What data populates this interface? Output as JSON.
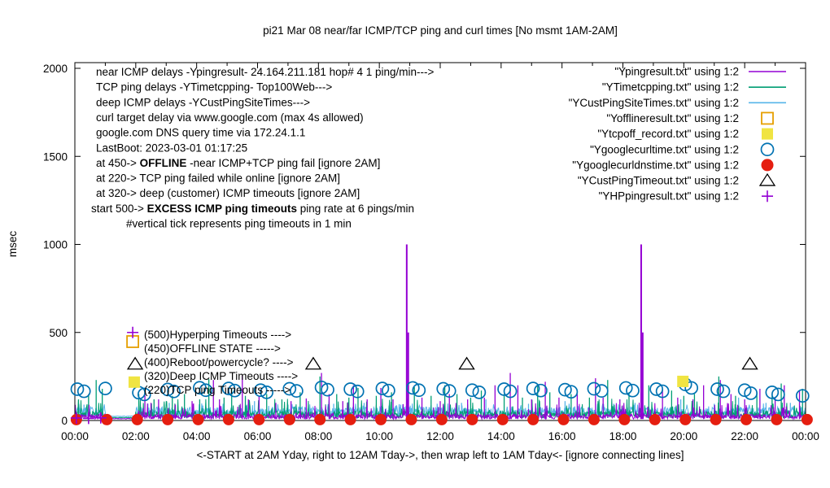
{
  "chart_data": {
    "type": "line",
    "title": "pi21 Mar 08  near/far ICMP/TCP ping and curl times [No msmt 1AM-2AM]",
    "xlabel": "<-START at 2AM Yday, right to 12AM Tday->, then wrap left to 1AM Tday<- [ignore connecting lines]",
    "ylabel": "msec",
    "xlim": [
      0,
      24
    ],
    "ylim": [
      0,
      2000
    ],
    "grid": false,
    "legend_position": "top-right",
    "x_ticks": [
      "00:00",
      "02:00",
      "04:00",
      "06:00",
      "08:00",
      "10:00",
      "12:00",
      "14:00",
      "16:00",
      "18:00",
      "20:00",
      "22:00",
      "00:00"
    ],
    "y_ticks": [
      0,
      500,
      1000,
      1500,
      2000
    ],
    "minor_x_tick_every_hours": 1,
    "no_measurement_gap_hours": [
      1,
      2
    ],
    "noise_seed": 20230308,
    "colors": {
      "purple": "#9400d3",
      "teal": "#009e73",
      "skyblue": "#56b4e9",
      "orange": "#e69f00",
      "yellow": "#f0e442",
      "blue": "#0072b2",
      "red": "#e51e10",
      "black": "#000000"
    },
    "series": [
      {
        "name": "YCustPingSiteTimes.txt",
        "color": "skyblue",
        "style": "impulse-noise",
        "noise": {
          "base": 22,
          "jitter": 55,
          "p": 0.16,
          "amp": 75
        },
        "spikes": [
          [
            0.3,
            90
          ],
          [
            2.4,
            95
          ],
          [
            3.1,
            100
          ],
          [
            4.2,
            85
          ],
          [
            5.9,
            110
          ],
          [
            7.0,
            90
          ],
          [
            8.5,
            95
          ],
          [
            9.5,
            100
          ],
          [
            10.7,
            90
          ],
          [
            11.9,
            95
          ],
          [
            12.7,
            100
          ],
          [
            13.5,
            120
          ],
          [
            14.9,
            95
          ],
          [
            16.1,
            110
          ],
          [
            17.7,
            95
          ],
          [
            18.4,
            100
          ],
          [
            19.9,
            120
          ],
          [
            21.0,
            95
          ],
          [
            21.8,
            130
          ],
          [
            22.7,
            100
          ],
          [
            23.5,
            100
          ]
        ]
      },
      {
        "name": "YTimetcpping.txt",
        "color": "teal",
        "style": "impulse-noise",
        "noise": {
          "base": 14,
          "jitter": 40,
          "p": 0.12,
          "amp": 110
        },
        "spikes": [
          [
            0.12,
            120
          ],
          [
            0.45,
            150
          ],
          [
            0.7,
            230
          ],
          [
            0.9,
            180
          ],
          [
            2.1,
            150
          ],
          [
            2.6,
            120
          ],
          [
            3.2,
            140
          ],
          [
            3.6,
            150
          ],
          [
            4.1,
            120
          ],
          [
            4.4,
            235
          ],
          [
            4.9,
            130
          ],
          [
            5.15,
            180
          ],
          [
            5.6,
            140
          ],
          [
            6.3,
            150
          ],
          [
            6.8,
            120
          ],
          [
            7.4,
            160
          ],
          [
            8.05,
            250
          ],
          [
            8.6,
            150
          ],
          [
            9.0,
            130
          ],
          [
            9.3,
            185
          ],
          [
            9.9,
            140
          ],
          [
            10.4,
            160
          ],
          [
            11.15,
            190
          ],
          [
            11.7,
            140
          ],
          [
            12.15,
            200
          ],
          [
            12.55,
            150
          ],
          [
            13.0,
            130
          ],
          [
            13.35,
            170
          ],
          [
            14.1,
            150
          ],
          [
            14.7,
            130
          ],
          [
            15.2,
            200
          ],
          [
            15.6,
            160
          ],
          [
            16.3,
            150
          ],
          [
            16.9,
            130
          ],
          [
            17.5,
            230
          ],
          [
            18.2,
            160
          ],
          [
            18.85,
            200
          ],
          [
            19.6,
            170
          ],
          [
            20.0,
            140
          ],
          [
            20.35,
            150
          ],
          [
            21.15,
            250
          ],
          [
            21.7,
            140
          ],
          [
            22.4,
            160
          ],
          [
            22.9,
            140
          ],
          [
            23.2,
            210
          ],
          [
            23.9,
            180
          ]
        ]
      },
      {
        "name": "Ypingresult.txt",
        "color": "purple",
        "style": "impulse-noise",
        "noise": {
          "base": 8,
          "jitter": 28,
          "p": 0.09,
          "amp": 95
        },
        "spikes": [
          [
            2.3,
            160
          ],
          [
            2.5,
            100
          ],
          [
            2.75,
            120
          ],
          [
            3.3,
            90
          ],
          [
            3.85,
            110
          ],
          [
            4.55,
            230
          ],
          [
            4.75,
            120
          ],
          [
            5.5,
            255
          ],
          [
            5.7,
            120
          ],
          [
            6.05,
            140
          ],
          [
            6.6,
            100
          ],
          [
            7.1,
            110
          ],
          [
            7.6,
            125
          ],
          [
            8.1,
            270
          ],
          [
            8.35,
            150
          ],
          [
            8.8,
            110
          ],
          [
            9.15,
            200
          ],
          [
            9.6,
            120
          ],
          [
            10.05,
            185
          ],
          [
            10.45,
            120
          ],
          [
            10.9,
            1000
          ],
          [
            10.95,
            500
          ],
          [
            11.4,
            130
          ],
          [
            12.0,
            110
          ],
          [
            12.3,
            150
          ],
          [
            12.9,
            120
          ],
          [
            13.45,
            130
          ],
          [
            13.8,
            200
          ],
          [
            14.3,
            270
          ],
          [
            14.55,
            200
          ],
          [
            15.0,
            120
          ],
          [
            15.45,
            220
          ],
          [
            15.9,
            130
          ],
          [
            16.5,
            150
          ],
          [
            17.1,
            240
          ],
          [
            17.35,
            130
          ],
          [
            17.9,
            120
          ],
          [
            18.6,
            1000
          ],
          [
            18.65,
            500
          ],
          [
            19.3,
            180
          ],
          [
            19.8,
            130
          ],
          [
            20.3,
            120
          ],
          [
            20.65,
            200
          ],
          [
            21.2,
            230
          ],
          [
            21.55,
            150
          ],
          [
            22.0,
            120
          ],
          [
            22.5,
            180
          ],
          [
            23.0,
            130
          ],
          [
            23.3,
            200
          ],
          [
            23.8,
            170
          ]
        ]
      }
    ],
    "markers": {
      "dns_time_red_dots": {
        "series": "Ygooglecurldnstime.txt",
        "value": 5,
        "hours": [
          0,
          1,
          2,
          3,
          4,
          5,
          6,
          7,
          8,
          9,
          10,
          11,
          12,
          13,
          14,
          15,
          16,
          17,
          18,
          19,
          20,
          21,
          22,
          23,
          24
        ]
      },
      "curl_time_circles": {
        "series": "Ygooglecurltime.txt",
        "points": [
          [
            0.08,
            178
          ],
          [
            0.3,
            166
          ],
          [
            1.0,
            182
          ],
          [
            2.1,
            158
          ],
          [
            2.28,
            148
          ],
          [
            3.05,
            176
          ],
          [
            3.25,
            165
          ],
          [
            4.1,
            186
          ],
          [
            4.3,
            172
          ],
          [
            5.05,
            182
          ],
          [
            5.25,
            170
          ],
          [
            6.1,
            172
          ],
          [
            6.3,
            160
          ],
          [
            7.05,
            180
          ],
          [
            7.28,
            168
          ],
          [
            8.1,
            188
          ],
          [
            8.3,
            175
          ],
          [
            9.05,
            178
          ],
          [
            9.28,
            165
          ],
          [
            10.1,
            182
          ],
          [
            10.3,
            170
          ],
          [
            11.1,
            185
          ],
          [
            11.3,
            172
          ],
          [
            12.1,
            180
          ],
          [
            12.3,
            168
          ],
          [
            13.05,
            172
          ],
          [
            13.28,
            160
          ],
          [
            14.1,
            178
          ],
          [
            14.3,
            166
          ],
          [
            15.05,
            182
          ],
          [
            15.3,
            170
          ],
          [
            16.1,
            175
          ],
          [
            16.3,
            163
          ],
          [
            17.05,
            180
          ],
          [
            17.3,
            168
          ],
          [
            18.1,
            185
          ],
          [
            18.32,
            170
          ],
          [
            19.1,
            178
          ],
          [
            19.3,
            166
          ],
          [
            20.05,
            205
          ],
          [
            20.25,
            185
          ],
          [
            21.1,
            178
          ],
          [
            21.3,
            166
          ],
          [
            22.0,
            172
          ],
          [
            22.2,
            155
          ],
          [
            22.9,
            160
          ],
          [
            23.1,
            148
          ],
          [
            23.9,
            140
          ]
        ]
      },
      "deep_icmp_timeout_triangles": {
        "series": "YCustPingTimeout.txt",
        "points": [
          [
            1.98,
            320
          ],
          [
            7.83,
            320
          ],
          [
            12.87,
            320
          ],
          [
            22.17,
            320
          ]
        ]
      },
      "tcp_off_yellow_squares": {
        "series": "Ytcpoff_record.txt",
        "points": [
          [
            1.95,
            218
          ],
          [
            19.97,
            222
          ]
        ]
      },
      "offline_orange_squares": {
        "series": "Yofflineresult.txt",
        "points": [
          [
            1.9,
            448
          ]
        ]
      },
      "hp_ping_plus": {
        "series": "YHPpingresult.txt",
        "points": [
          [
            0.05,
            14
          ],
          [
            0.45,
            12
          ],
          [
            0.85,
            15
          ],
          [
            1.9,
            500
          ]
        ]
      }
    },
    "legend": [
      {
        "label": "\"Ypingresult.txt\" using 1:2",
        "marker": "line",
        "color": "purple"
      },
      {
        "label": "\"YTimetcpping.txt\" using 1:2",
        "marker": "line",
        "color": "teal"
      },
      {
        "label": "\"YCustPingSiteTimes.txt\" using 1:2",
        "marker": "line",
        "color": "skyblue"
      },
      {
        "label": "\"Yofflineresult.txt\" using 1:2",
        "marker": "square-open",
        "color": "orange"
      },
      {
        "label": "\"Ytcpoff_record.txt\" using 1:2",
        "marker": "square-filled",
        "color": "yellow"
      },
      {
        "label": "\"Ygooglecurltime.txt\" using 1:2",
        "marker": "circle-open",
        "color": "blue"
      },
      {
        "label": "\"Ygooglecurldnstime.txt\" using 1:2",
        "marker": "circle-filled",
        "color": "red"
      },
      {
        "label": "\"YCustPingTimeout.txt\" using 1:2",
        "marker": "triangle-open",
        "color": "black"
      },
      {
        "label": "\"YHPpingresult.txt\" using 1:2",
        "marker": "plus",
        "color": "purple"
      }
    ],
    "annotations": {
      "lines": [
        {
          "x": 118,
          "segments": [
            {
              "t": "near ICMP delays -Ypingresult- 24.164.211.181 hop# 4 1 ping/min--->"
            }
          ]
        },
        {
          "x": 118,
          "segments": [
            {
              "t": "TCP ping delays -YTimetcpping- Top100Web--->"
            }
          ]
        },
        {
          "x": 118,
          "segments": [
            {
              "t": "deep ICMP delays -YCustPingSiteTimes--->"
            }
          ]
        },
        {
          "x": 118,
          "segments": [
            {
              "t": "curl target delay via www.google.com (max 4s allowed)"
            }
          ]
        },
        {
          "x": 118,
          "segments": [
            {
              "t": "google.com DNS query time via 172.24.1.1"
            }
          ]
        },
        {
          "x": 118,
          "segments": [
            {
              "t": "LastBoot: 2023-03-01 01:17:25"
            }
          ]
        },
        {
          "x": 118,
          "segments": [
            {
              "t": "at 450->  "
            },
            {
              "t": "OFFLINE",
              "b": 1
            },
            {
              "t": " -near ICMP+TCP ping fail [ignore 2AM]"
            }
          ]
        },
        {
          "x": 118,
          "segments": [
            {
              "t": "at 220-> TCP ping failed while online [ignore 2AM]"
            }
          ]
        },
        {
          "x": 118,
          "segments": [
            {
              "t": "at 320-> deep (customer) ICMP timeouts [ignore 2AM]"
            }
          ]
        },
        {
          "x": 112,
          "segments": [
            {
              "t": "start 500->  "
            },
            {
              "t": "EXCESS ICMP ping timeouts",
              "b": 1
            },
            {
              "t": " ping rate at 6 pings/min"
            }
          ]
        },
        {
          "x": 155,
          "segments": [
            {
              "t": "#vertical tick represents ping timeouts in 1 min"
            }
          ]
        }
      ]
    },
    "mid_labels": [
      {
        "text": "(500)Hyperping Timeouts ---->",
        "y_msec": 466
      },
      {
        "text": "(450)OFFLINE STATE ----->",
        "y_msec": 388
      },
      {
        "text": "(400)Reboot/powercycle? ---->",
        "y_msec": 309
      },
      {
        "text": "(320)Deep ICMP Timeouts ---->",
        "y_msec": 231
      },
      {
        "text": "(220)TCP ping Timeouts ----->",
        "y_msec": 152
      }
    ]
  }
}
